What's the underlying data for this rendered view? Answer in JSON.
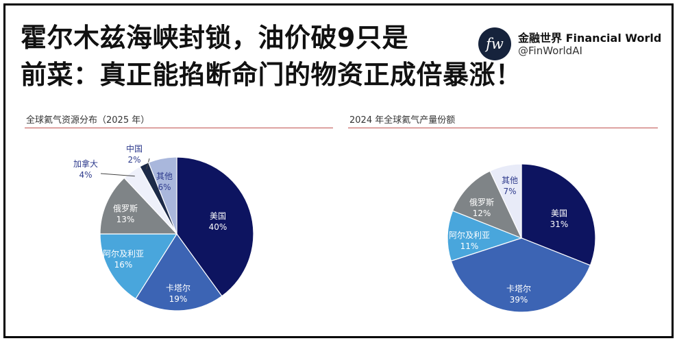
{
  "headline": {
    "line1": "霍尔木兹海峡封锁，油价破9只是",
    "line2": "前菜：真正能掐断命门的物资正成倍暴涨！"
  },
  "brand": {
    "logo_text": "fw",
    "name": "金融世界 Financial World",
    "handle": "@FinWorldAI"
  },
  "chart_data": [
    {
      "type": "pie",
      "title": "全球氦气资源分布（2025 年）",
      "slices": [
        {
          "label": "美国",
          "value": 40,
          "display": "40%",
          "color": "#0d1460",
          "text_color": "#ffffff"
        },
        {
          "label": "卡塔尔",
          "value": 19,
          "display": "19%",
          "color": "#3c64b4",
          "text_color": "#ffffff"
        },
        {
          "label": "阿尔及利亚",
          "value": 16,
          "display": "16%",
          "color": "#49a6dc",
          "text_color": "#ffffff"
        },
        {
          "label": "俄罗斯",
          "value": 13,
          "display": "13%",
          "color": "#7f8487",
          "text_color": "#ffffff"
        },
        {
          "label": "加拿大",
          "value": 4,
          "display": "4%",
          "color": "#eef0fa",
          "text_color": "#2d3a8c"
        },
        {
          "label": "中国",
          "value": 2,
          "display": "2%",
          "color": "#1c2a48",
          "text_color": "#2d3a8c"
        },
        {
          "label": "其他",
          "value": 6,
          "display": "6%",
          "color": "#a9b7dc",
          "text_color": "#2d3a8c"
        }
      ]
    },
    {
      "type": "pie",
      "title": "2024 年全球氦气产量份额",
      "slices": [
        {
          "label": "美国",
          "value": 31,
          "display": "31%",
          "color": "#0d1460",
          "text_color": "#ffffff"
        },
        {
          "label": "卡塔尔",
          "value": 39,
          "display": "39%",
          "color": "#3c64b4",
          "text_color": "#ffffff"
        },
        {
          "label": "阿尔及利亚",
          "value": 11,
          "display": "11%",
          "color": "#49a6dc",
          "text_color": "#ffffff"
        },
        {
          "label": "俄罗斯",
          "value": 12,
          "display": "12%",
          "color": "#7f8487",
          "text_color": "#ffffff"
        },
        {
          "label": "其他",
          "value": 7,
          "display": "7%",
          "color": "#e8ebf8",
          "text_color": "#2d3a8c"
        }
      ]
    }
  ]
}
